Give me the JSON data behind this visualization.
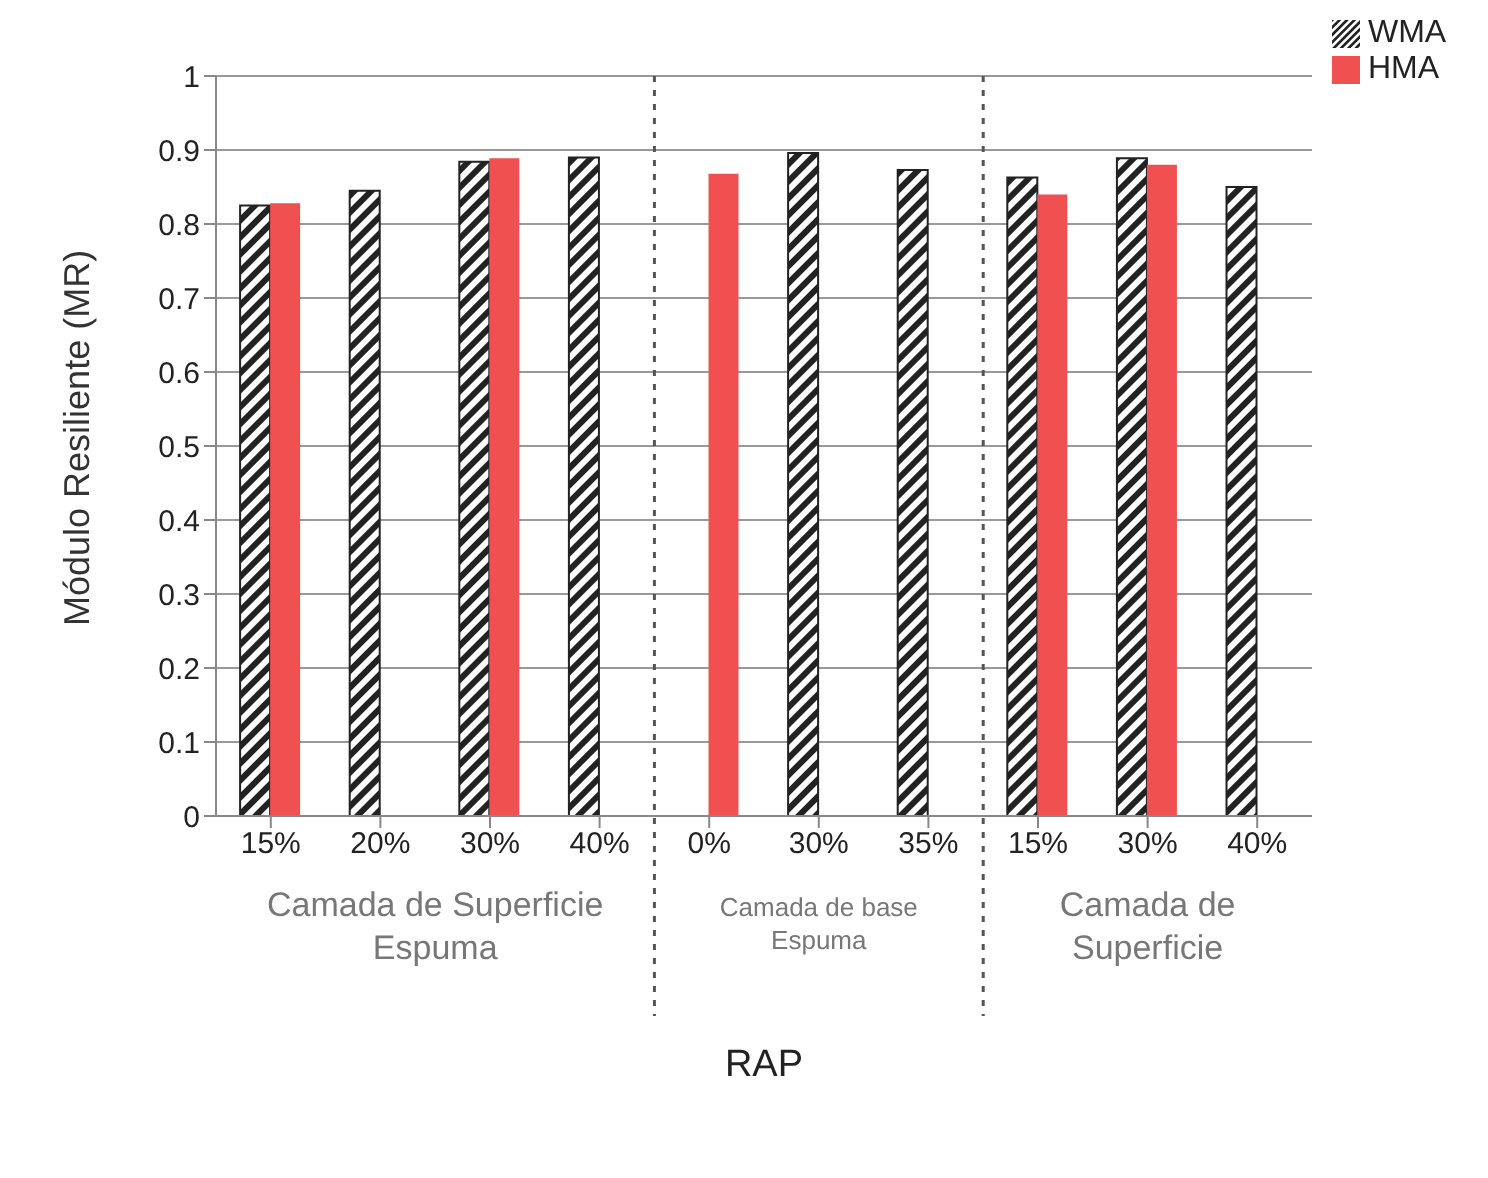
{
  "chart_data": {
    "type": "bar",
    "ylabel": "Módulo Resiliente (MR)",
    "xlabel": "RAP",
    "categories": [
      "15%",
      "20%",
      "30%",
      "40%",
      "0%",
      "30%",
      "35%",
      "15%",
      "30%",
      "40%"
    ],
    "series": [
      {
        "name": "WMA",
        "color": "#222222",
        "values": [
          0.825,
          0.845,
          0.884,
          0.89,
          null,
          0.896,
          0.873,
          0.863,
          0.889,
          0.85
        ]
      },
      {
        "name": "HMA",
        "color": "#f05050",
        "values": [
          0.828,
          null,
          0.889,
          null,
          0.868,
          null,
          null,
          0.84,
          0.88,
          null
        ]
      }
    ],
    "ylim": [
      0,
      1
    ],
    "yticks": [
      0,
      0.1,
      0.2,
      0.3,
      0.4,
      0.5,
      0.6,
      0.7,
      0.8,
      0.9,
      1
    ],
    "grid": "y",
    "legend": "top right",
    "annotations": [
      "Camada de Superficie Espuma",
      "Camada de base Espuma",
      "Camada de Superficie"
    ]
  }
}
